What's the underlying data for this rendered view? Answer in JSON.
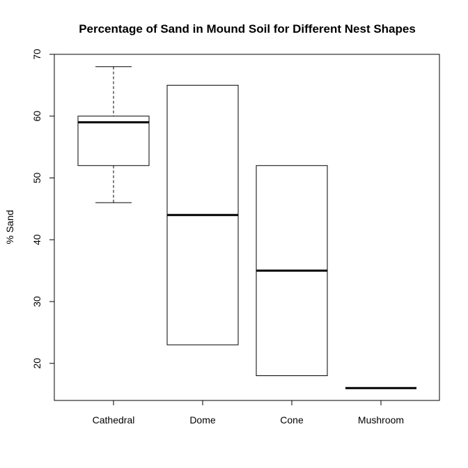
{
  "chart_data": {
    "type": "boxplot",
    "title": "Percentage of Sand in Mound Soil for Different Nest Shapes",
    "xlabel": "",
    "ylabel": "% Sand",
    "ylim": [
      14,
      70
    ],
    "yticks": [
      20,
      30,
      40,
      50,
      60,
      70
    ],
    "categories": [
      "Cathedral",
      "Dome",
      "Cone",
      "Mushroom"
    ],
    "boxes": [
      {
        "category": "Cathedral",
        "whisker_low": 46,
        "q1": 52,
        "median": 59,
        "q3": 60,
        "whisker_high": 68
      },
      {
        "category": "Dome",
        "whisker_low": 23,
        "q1": 23,
        "median": 44,
        "q3": 65,
        "whisker_high": 65
      },
      {
        "category": "Cone",
        "whisker_low": 18,
        "q1": 18,
        "median": 35,
        "q3": 52,
        "whisker_high": 52
      },
      {
        "category": "Mushroom",
        "whisker_low": 16,
        "q1": 16,
        "median": 16,
        "q3": 16,
        "whisker_high": 16
      }
    ],
    "grid": false,
    "legend": "none"
  }
}
